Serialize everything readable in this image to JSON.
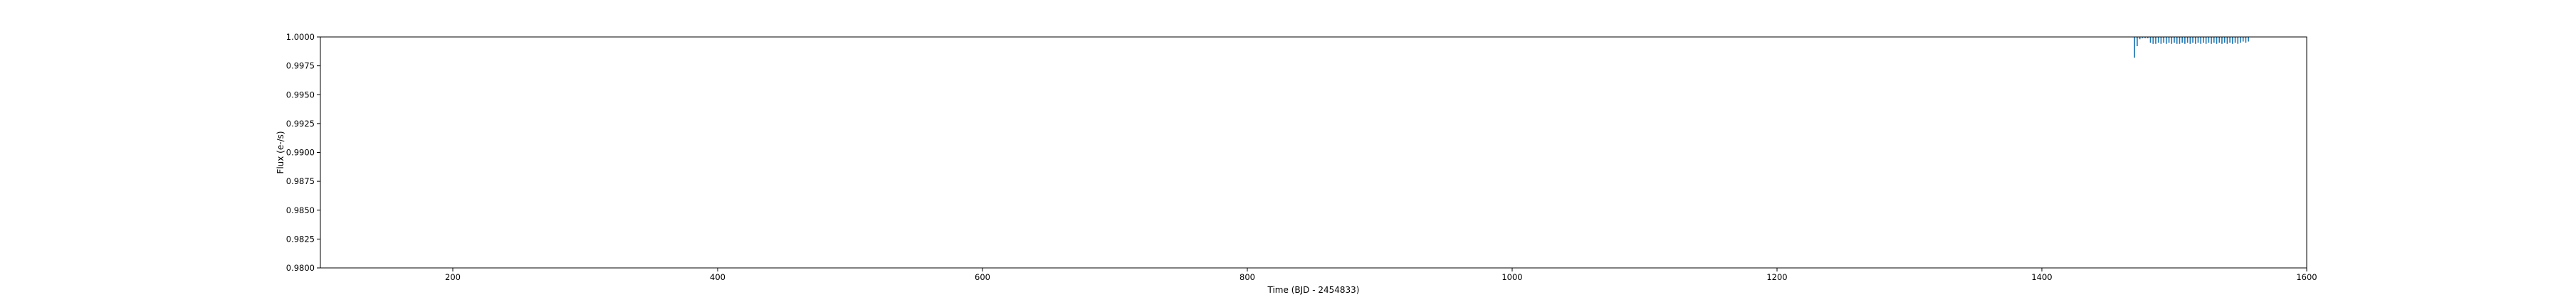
{
  "chart_data": {
    "type": "scatter",
    "title": "",
    "xlabel": "Time (BJD - 2454833)",
    "ylabel": "Flux (e-/s)",
    "xlim": [
      100,
      1600
    ],
    "ylim": [
      0.98,
      1.0
    ],
    "xticks": [
      200,
      400,
      600,
      800,
      1000,
      1200,
      1400,
      1600
    ],
    "xtick_labels": [
      "200",
      "400",
      "600",
      "800",
      "1000",
      "1200",
      "1400",
      "1600"
    ],
    "yticks": [
      0.98,
      0.9825,
      0.985,
      0.9875,
      0.99,
      0.9925,
      0.995,
      0.9975,
      1.0
    ],
    "ytick_labels": [
      "0.9800",
      "0.9825",
      "0.9850",
      "0.9875",
      "0.9900",
      "0.9925",
      "0.9950",
      "0.9975",
      "1.0000"
    ],
    "grid": false,
    "colors": {
      "points": "#1f77b4",
      "axes": "#000000"
    },
    "series": [
      {
        "x": [
          1470,
          1472,
          1474,
          1476,
          1478,
          1480,
          1482,
          1484,
          1486,
          1488,
          1490,
          1492,
          1494,
          1496,
          1498,
          1500,
          1502,
          1504,
          1506,
          1508,
          1510,
          1512,
          1514,
          1516,
          1518,
          1520,
          1522,
          1524,
          1526,
          1528,
          1530,
          1532,
          1534,
          1536,
          1538,
          1540,
          1542,
          1544,
          1546,
          1548,
          1550,
          1552,
          1554,
          1556
        ],
        "y": [
          0.9982,
          0.9992,
          0.9998,
          0.9999,
          0.9999,
          0.9999,
          0.9995,
          0.9994,
          0.9994,
          0.9995,
          0.9994,
          0.9995,
          0.9994,
          0.9995,
          0.9994,
          0.9995,
          0.9994,
          0.9994,
          0.9995,
          0.9994,
          0.9995,
          0.9994,
          0.9995,
          0.9994,
          0.9995,
          0.9994,
          0.9995,
          0.9994,
          0.9995,
          0.9994,
          0.9995,
          0.9994,
          0.9995,
          0.9994,
          0.9995,
          0.9994,
          0.9995,
          0.9994,
          0.9995,
          0.9994,
          0.9995,
          0.9996,
          0.9995,
          0.9996
        ]
      }
    ]
  }
}
